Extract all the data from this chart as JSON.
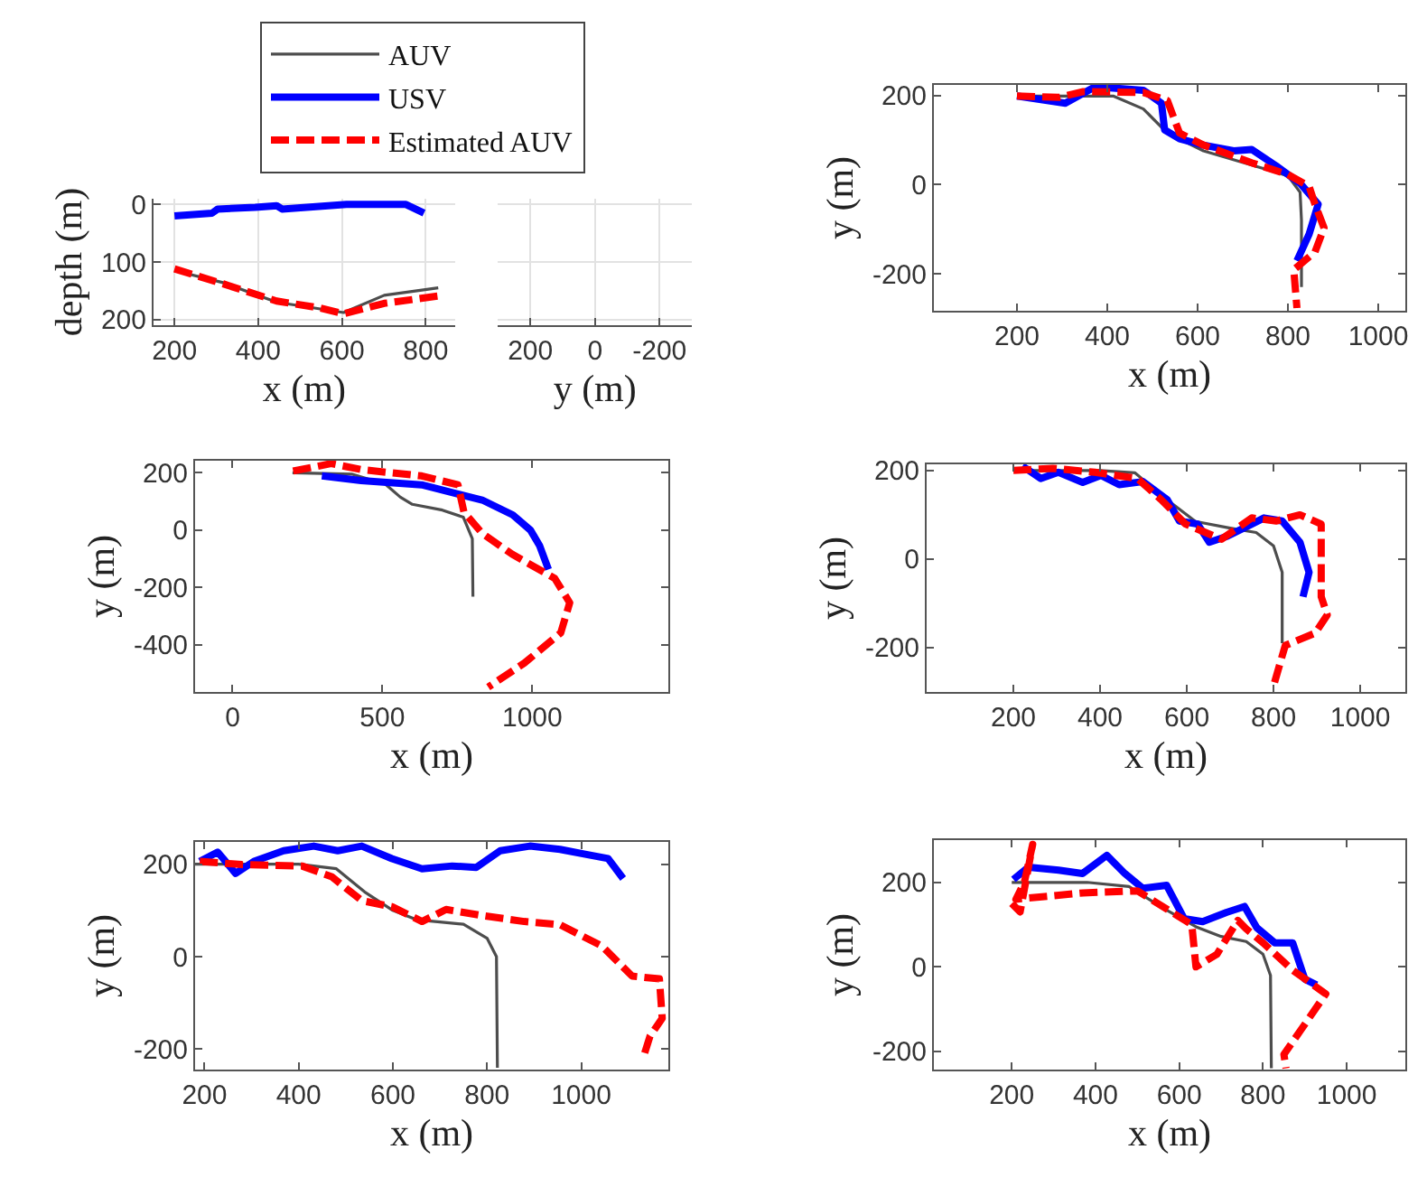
{
  "chart_data": [
    {
      "type": "line",
      "xlabel": "x (m)",
      "ylabel": "depth (m)",
      "x2label": "y (m)",
      "xlim": [
        150,
        870
      ],
      "xticks": [
        200,
        400,
        600,
        800
      ],
      "ylim": [
        210,
        -10
      ],
      "yticks": [
        0,
        100,
        200
      ],
      "x2lim": [
        300,
        -300
      ],
      "x2ticks": [
        200,
        0,
        -200
      ],
      "grid": true,
      "legend": "top",
      "marker": "none",
      "series": [
        {
          "name": "AUV",
          "color": "#4d4d4d",
          "line_style": "solid",
          "x": [
            200,
            316,
            444,
            604,
            701,
            830
          ],
          "values": [
            115,
            136,
            170,
            188,
            158,
            145
          ]
        },
        {
          "name": "USV",
          "color": "#0000ff",
          "line_style": "solid",
          "x": [
            200,
            290,
            303,
            393,
            444,
            457,
            611,
            753,
            796
          ],
          "values": [
            20,
            15,
            8,
            5,
            2,
            8,
            0,
            0,
            15
          ]
        },
        {
          "name": "Estimated AUV",
          "color": "#ff0000",
          "line_style": "dashed",
          "x": [
            200,
            316,
            444,
            547,
            604,
            701,
            843
          ],
          "values": [
            112,
            138,
            168,
            180,
            190,
            172,
            158
          ]
        }
      ]
    },
    {
      "type": "line",
      "xlabel": "x (m)",
      "ylabel": "y (m)",
      "xlim": [
        16,
        1060
      ],
      "xticks": [
        200,
        400,
        600,
        800,
        1000
      ],
      "ylim": [
        -283,
        224
      ],
      "yticks": [
        -200,
        0,
        200
      ],
      "legend": false,
      "marker": "none",
      "series": [
        {
          "color": "#4d4d4d",
          "line_style": "solid",
          "x": [
            200,
            413,
            480,
            533,
            613,
            747,
            800,
            827,
            830,
            830
          ],
          "values": [
            199,
            199,
            170,
            116,
            76,
            36,
            20,
            -17,
            -80,
            -230
          ]
        },
        {
          "color": "#0000ff",
          "line_style": "solid",
          "x": [
            200,
            307,
            373,
            480,
            520,
            527,
            560,
            613,
            680,
            720,
            773,
            827,
            867,
            847,
            820
          ],
          "values": [
            199,
            183,
            220,
            212,
            183,
            123,
            103,
            89,
            76,
            79,
            43,
            3,
            -44,
            -111,
            -171
          ]
        },
        {
          "color": "#ff0000",
          "line_style": "dashed",
          "x": [
            200,
            293,
            347,
            480,
            533,
            560,
            613,
            720,
            800,
            847,
            860,
            880,
            860,
            813,
            820
          ],
          "values": [
            199,
            196,
            209,
            207,
            189,
            116,
            89,
            49,
            23,
            -4,
            -44,
            -97,
            -151,
            -191,
            -277
          ]
        }
      ]
    },
    {
      "type": "line",
      "xlabel": "x (m)",
      "ylabel": "y (m)",
      "xlim": [
        -125,
        1454
      ],
      "xticks": [
        0,
        500,
        1000
      ],
      "ylim": [
        -564,
        242
      ],
      "yticks": [
        -400,
        -200,
        0,
        200
      ],
      "legend": false,
      "marker": "none",
      "series": [
        {
          "color": "#4d4d4d",
          "line_style": "solid",
          "x": [
            200,
            400,
            510,
            560,
            600,
            700,
            770,
            800,
            802
          ],
          "values": [
            200,
            195,
            160,
            115,
            90,
            70,
            45,
            -30,
            -232
          ]
        },
        {
          "color": "#0000ff",
          "line_style": "solid",
          "x": [
            298,
            429,
            631,
            833,
            935,
            994,
            1024,
            1054
          ],
          "values": [
            189,
            173,
            158,
            105,
            53,
            0,
            -53,
            -137
          ]
        },
        {
          "color": "#ff0000",
          "line_style": "dashed",
          "x": [
            202,
            329,
            429,
            631,
            752,
            772,
            833,
            933,
            1075,
            1125,
            1095,
            974,
            853
          ],
          "values": [
            206,
            232,
            211,
            189,
            158,
            63,
            -11,
            -84,
            -168,
            -253,
            -358,
            -463,
            -547
          ]
        }
      ]
    },
    {
      "type": "line",
      "xlabel": "x (m)",
      "ylabel": "y (m)",
      "xlim": [
        0,
        1104
      ],
      "xticks": [
        200,
        400,
        600,
        800,
        1000
      ],
      "ylim": [
        -300,
        214
      ],
      "yticks": [
        -200,
        0,
        200
      ],
      "legend": false,
      "marker": "none",
      "series": [
        {
          "color": "#4d4d4d",
          "line_style": "solid",
          "x": [
            200,
            400,
            480,
            560,
            620,
            700,
            760,
            800,
            820,
            820
          ],
          "values": [
            200,
            200,
            195,
            130,
            85,
            70,
            60,
            30,
            -30,
            -190
          ]
        },
        {
          "color": "#0000ff",
          "line_style": "solid",
          "x": [
            221,
            263,
            304,
            360,
            402,
            444,
            499,
            555,
            583,
            625,
            652,
            694,
            750,
            778,
            820,
            861,
            882,
            868
          ],
          "values": [
            210,
            182,
            196,
            173,
            189,
            168,
            175,
            134,
            86,
            79,
            38,
            52,
            79,
            93,
            86,
            38,
            -30,
            -85
          ]
        },
        {
          "color": "#ff0000",
          "line_style": "dashed",
          "x": [
            200,
            291,
            388,
            486,
            541,
            597,
            680,
            750,
            806,
            861,
            910,
            910,
            924,
            896,
            827,
            799
          ],
          "values": [
            200,
            205,
            196,
            182,
            134,
            79,
            45,
            93,
            86,
            100,
            79,
            -85,
            -126,
            -167,
            -195,
            -290
          ]
        }
      ]
    },
    {
      "type": "line",
      "xlabel": "x (m)",
      "ylabel": "y (m)",
      "xlim": [
        180,
        1185
      ],
      "xticks": [
        200,
        400,
        600,
        800,
        1000
      ],
      "ylim": [
        -244,
        248
      ],
      "yticks": [
        -200,
        0,
        200
      ],
      "legend": false,
      "marker": "none",
      "series": [
        {
          "color": "#4d4d4d",
          "line_style": "solid",
          "x": [
            180,
            400,
            480,
            540,
            600,
            650,
            700,
            750,
            800,
            820,
            822
          ],
          "values": [
            200,
            200,
            190,
            140,
            100,
            80,
            75,
            70,
            40,
            0,
            -240
          ]
        },
        {
          "color": "#0000ff",
          "line_style": "solid",
          "x": [
            190,
            228,
            266,
            305,
            368,
            432,
            483,
            534,
            598,
            662,
            726,
            777,
            828,
            891,
            955,
            1006,
            1057,
            1089
          ],
          "values": [
            206,
            226,
            180,
            206,
            229,
            239,
            229,
            239,
            212,
            190,
            196,
            193,
            229,
            239,
            232,
            222,
            212,
            169
          ]
        },
        {
          "color": "#ff0000",
          "line_style": "dashed",
          "x": [
            190,
            279,
            407,
            470,
            534,
            598,
            662,
            713,
            789,
            879,
            955,
            1044,
            1108,
            1166,
            1172,
            1146,
            1134
          ],
          "values": [
            206,
            199,
            196,
            173,
            121,
            108,
            76,
            102,
            89,
            76,
            69,
            23,
            -42,
            -48,
            -133,
            -172,
            -211
          ]
        }
      ]
    },
    {
      "type": "line",
      "xlabel": "x (m)",
      "ylabel": "y (m)",
      "xlim": [
        14,
        1140
      ],
      "xticks": [
        200,
        400,
        600,
        800,
        1000
      ],
      "ylim": [
        -243,
        300
      ],
      "yticks": [
        -200,
        0,
        200
      ],
      "legend": false,
      "marker": "none",
      "series": [
        {
          "color": "#4d4d4d",
          "line_style": "solid",
          "x": [
            200,
            380,
            480,
            560,
            640,
            700,
            760,
            800,
            818,
            820
          ],
          "values": [
            200,
            200,
            190,
            140,
            95,
            72,
            60,
            30,
            -20,
            -240
          ]
        },
        {
          "color": "#0000ff",
          "line_style": "solid",
          "x": [
            204,
            240,
            312,
            369,
            427,
            470,
            513,
            570,
            612,
            656,
            713,
            756,
            785,
            828,
            871,
            900,
            928
          ],
          "values": [
            207,
            236,
            229,
            221,
            264,
            221,
            186,
            193,
            114,
            107,
            129,
            143,
            93,
            57,
            57,
            -29,
            -43
          ]
        },
        {
          "color": "#ff0000",
          "line_style": "dashed",
          "x": [
            200,
            220,
            250,
            230,
            210,
            370,
            500,
            630,
            640,
            690,
            740,
            760,
            800,
            870,
            950,
            890,
            850,
            855
          ],
          "values": [
            150,
            130,
            290,
            200,
            160,
            175,
            180,
            100,
            0,
            30,
            110,
            90,
            57,
            -7,
            -64,
            -150,
            -207,
            -240
          ]
        }
      ]
    }
  ]
}
